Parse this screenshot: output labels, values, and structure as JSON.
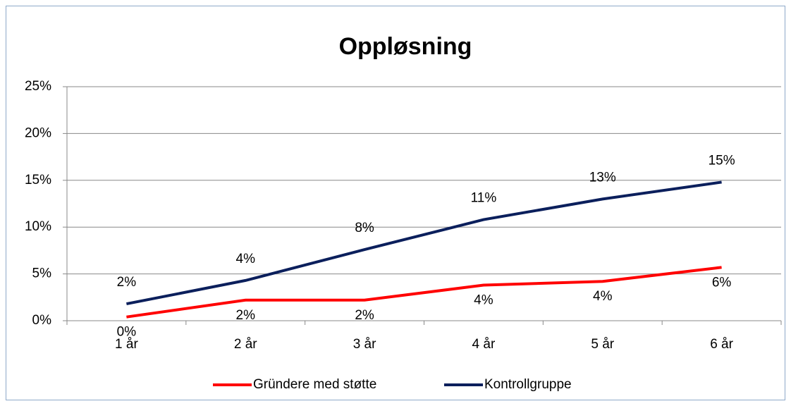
{
  "chart_data": {
    "type": "line",
    "title": "Oppløsning",
    "categories": [
      "1 år",
      "2 år",
      "3 år",
      "4 år",
      "5 år",
      "6 år"
    ],
    "series": [
      {
        "name": "Gründere med støtte",
        "color": "#ff0000",
        "values": [
          0.4,
          2.2,
          2.2,
          3.8,
          4.2,
          5.7
        ],
        "value_labels": [
          "0%",
          "2%",
          "2%",
          "4%",
          "4%",
          "6%"
        ]
      },
      {
        "name": "Kontrollgruppe",
        "color": "#0b1f5c",
        "values": [
          1.8,
          4.3,
          7.6,
          10.8,
          13.0,
          14.8
        ],
        "value_labels": [
          "2%",
          "4%",
          "8%",
          "11%",
          "13%",
          "15%"
        ]
      }
    ],
    "ylim": [
      0,
      25
    ],
    "yticks": [
      {
        "value": 0,
        "label": "0%"
      },
      {
        "value": 5,
        "label": "5%"
      },
      {
        "value": 10,
        "label": "10%"
      },
      {
        "value": 15,
        "label": "15%"
      },
      {
        "value": 20,
        "label": "20%"
      },
      {
        "value": 25,
        "label": "25%"
      }
    ],
    "grid": true,
    "legend": "bottom"
  }
}
